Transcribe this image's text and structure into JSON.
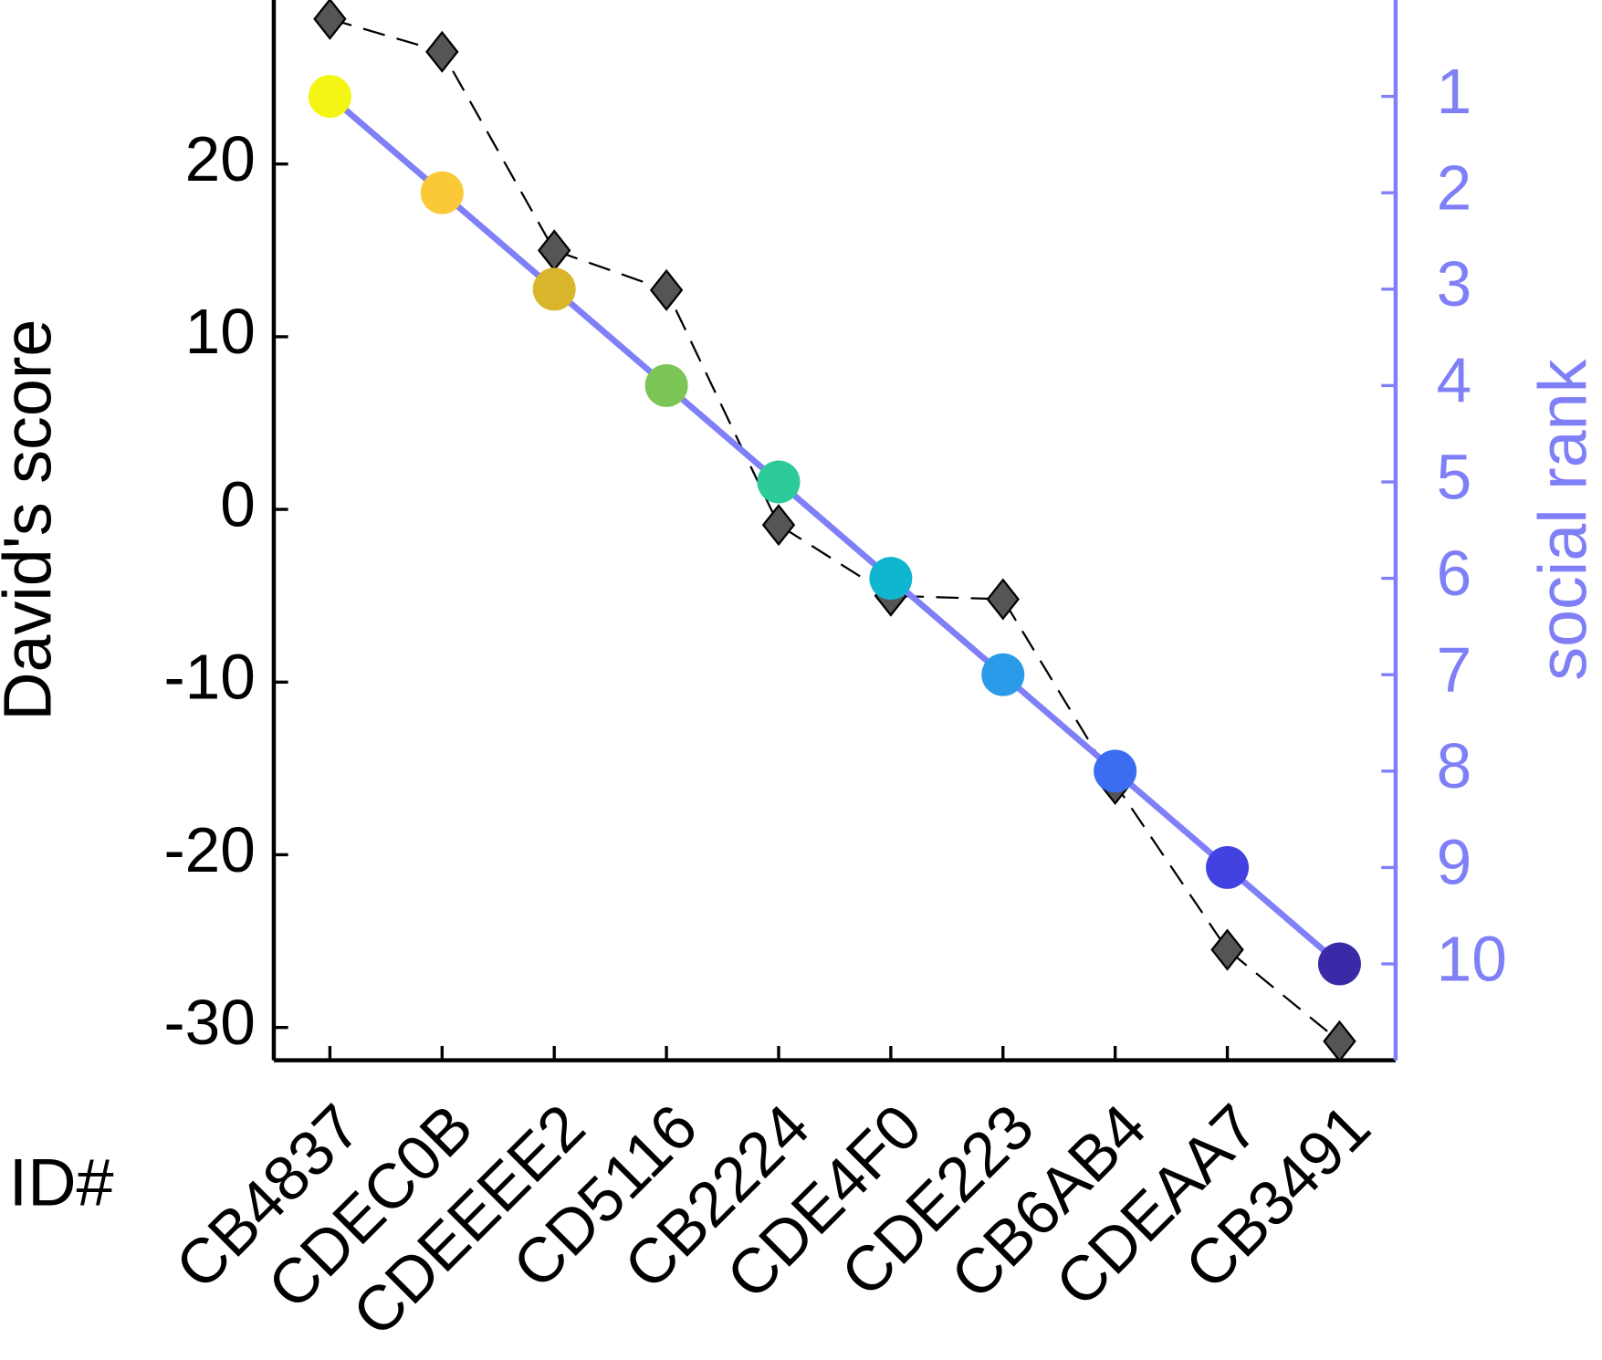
{
  "chart_data": {
    "type": "line",
    "categories": [
      "CB4837",
      "CDEC0B",
      "CDEEEE2",
      "CD5116",
      "CB2224",
      "CDE4F0",
      "CDE223",
      "CB6AB4",
      "CDEAA7",
      "CB3491"
    ],
    "xlabel": "ID#",
    "ylabel": "David's score",
    "y2label": "social rank",
    "ylim": [
      -31.9,
      29.5
    ],
    "yticks": [
      -30,
      -20,
      -10,
      0,
      10,
      20
    ],
    "y2lim": [
      0,
      11
    ],
    "y2reverse": true,
    "y2ticks": [
      1,
      2,
      3,
      4,
      5,
      6,
      7,
      8,
      9,
      10
    ],
    "y2color": "#7f7ff7",
    "series": [
      {
        "axis": "y",
        "color": "#555555",
        "marker": "diamond",
        "dashed": true,
        "values": [
          28.4,
          26.5,
          15.0,
          12.7,
          -0.9,
          -5.0,
          -5.2,
          -15.9,
          -25.5,
          -30.8
        ]
      },
      {
        "axis": "y2",
        "color": "#7f7ff7",
        "marker": "circle",
        "values": [
          1,
          2,
          3,
          4,
          5,
          6,
          7,
          8,
          9,
          10
        ],
        "colors": [
          "#f5f514",
          "#fbc937",
          "#d9b52b",
          "#7cc657",
          "#2ecb9a",
          "#10b6cf",
          "#2a9be8",
          "#3c6cf0",
          "#4242e0",
          "#3a2aa8"
        ]
      }
    ]
  }
}
